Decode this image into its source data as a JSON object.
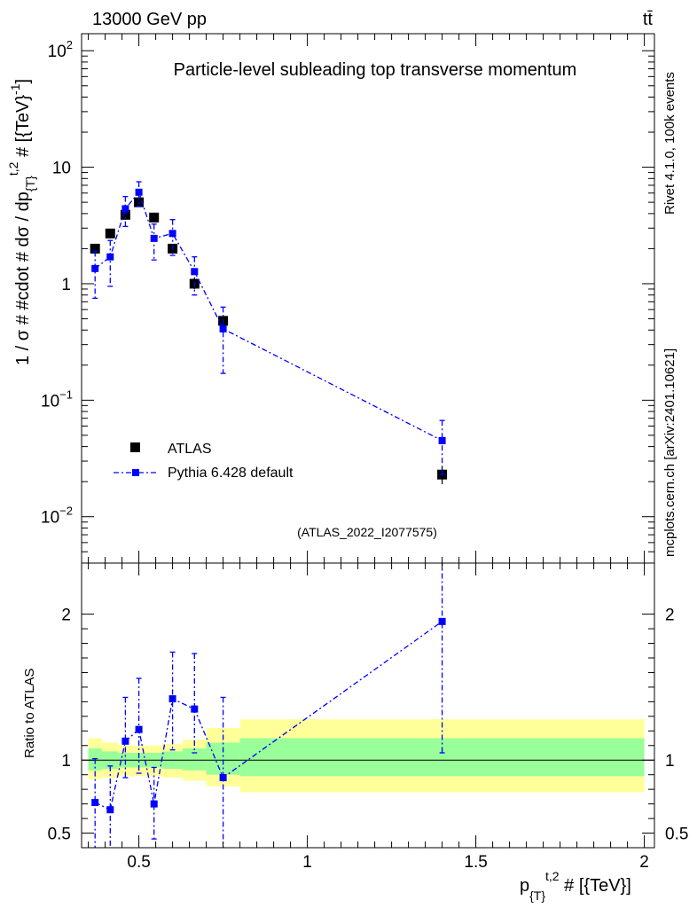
{
  "header": {
    "left_label": "13000 GeV pp",
    "right_label": "tt̄"
  },
  "side_labels": {
    "rivet": "Rivet 4.1.0,  100k events",
    "mcplots": "mcplots.cern.ch [arXiv:2401.10621]"
  },
  "colors": {
    "data": "#000000",
    "mc": "#0000ff",
    "band_outer": "#ffff99",
    "band_inner": "#99ff99",
    "watermark": "#999999"
  },
  "chart_data": [
    {
      "panel": "main",
      "type": "scatter",
      "title": "Particle-level subleading top transverse momentum",
      "xlabel": "p_{T}^{t,2} # [{TeV}]",
      "ylabel": "1 / σ # #cdot # dσ / dp_{T}^{t,2} # [{TeV}^{-1}]",
      "yscale": "log",
      "ylim": [
        0.004,
        140
      ],
      "xlim": [
        0.33,
        2.03
      ],
      "y_ticks": [
        {
          "value": 0.01,
          "label": "10",
          "exp": "−2"
        },
        {
          "value": 0.1,
          "label": "10",
          "exp": "−1"
        },
        {
          "value": 1,
          "label": "1",
          "exp": ""
        },
        {
          "value": 10,
          "label": "10",
          "exp": ""
        },
        {
          "value": 100,
          "label": "10",
          "exp": "2"
        }
      ],
      "watermark": "(ATLAS_2022_I2077575)",
      "legend": [
        {
          "label": "ATLAS",
          "marker": "square",
          "color": "#000000"
        },
        {
          "label": "Pythia 6.428 default",
          "marker": "square-line",
          "color": "#0000ff"
        }
      ],
      "series": [
        {
          "name": "ATLAS",
          "x": [
            0.37,
            0.415,
            0.46,
            0.5,
            0.545,
            0.6,
            0.665,
            0.75,
            1.4
          ],
          "y": [
            2.0,
            2.7,
            3.9,
            5.0,
            3.7,
            2.0,
            1.0,
            0.48,
            0.023
          ],
          "err": [
            0.2,
            0.25,
            0.35,
            0.4,
            0.3,
            0.18,
            0.1,
            0.06,
            0.004
          ]
        },
        {
          "name": "Pythia 6.428 default",
          "x": [
            0.37,
            0.415,
            0.46,
            0.5,
            0.545,
            0.6,
            0.665,
            0.75,
            1.4
          ],
          "y": [
            1.35,
            1.7,
            4.4,
            6.1,
            2.45,
            2.7,
            1.27,
            0.41,
            0.045
          ],
          "err_lo": [
            0.6,
            0.75,
            1.3,
            1.5,
            0.85,
            0.95,
            0.47,
            0.24,
            0.022
          ],
          "err_hi": [
            0.55,
            0.65,
            1.2,
            1.4,
            0.8,
            0.85,
            0.43,
            0.22,
            0.022
          ]
        }
      ]
    },
    {
      "panel": "ratio",
      "type": "line",
      "ylabel": "Ratio to ATLAS",
      "ylim": [
        0.4,
        2.35
      ],
      "y_ticks": [
        {
          "value": 0.5,
          "label": "0.5"
        },
        {
          "value": 1,
          "label": "1"
        },
        {
          "value": 2,
          "label": "2"
        }
      ],
      "xlim": [
        0.33,
        2.03
      ],
      "x_ticks": [
        {
          "value": 0.5,
          "label": "0.5"
        },
        {
          "value": 1,
          "label": "1"
        },
        {
          "value": 1.5,
          "label": "1.5"
        },
        {
          "value": 2,
          "label": "2"
        }
      ],
      "bands": [
        {
          "x0": 0.35,
          "x1": 0.39,
          "in_lo": 0.93,
          "in_hi": 1.08,
          "out_lo": 0.87,
          "out_hi": 1.15
        },
        {
          "x0": 0.39,
          "x1": 0.44,
          "in_lo": 0.94,
          "in_hi": 1.06,
          "out_lo": 0.88,
          "out_hi": 1.12
        },
        {
          "x0": 0.44,
          "x1": 0.48,
          "in_lo": 0.95,
          "in_hi": 1.05,
          "out_lo": 0.89,
          "out_hi": 1.1
        },
        {
          "x0": 0.48,
          "x1": 0.52,
          "in_lo": 0.95,
          "in_hi": 1.05,
          "out_lo": 0.89,
          "out_hi": 1.1
        },
        {
          "x0": 0.52,
          "x1": 0.57,
          "in_lo": 0.95,
          "in_hi": 1.05,
          "out_lo": 0.89,
          "out_hi": 1.1
        },
        {
          "x0": 0.57,
          "x1": 0.63,
          "in_lo": 0.94,
          "in_hi": 1.06,
          "out_lo": 0.88,
          "out_hi": 1.11
        },
        {
          "x0": 0.63,
          "x1": 0.7,
          "in_lo": 0.93,
          "in_hi": 1.08,
          "out_lo": 0.86,
          "out_hi": 1.14
        },
        {
          "x0": 0.7,
          "x1": 0.8,
          "in_lo": 0.9,
          "in_hi": 1.12,
          "out_lo": 0.82,
          "out_hi": 1.22
        },
        {
          "x0": 0.8,
          "x1": 2.0,
          "in_lo": 0.89,
          "in_hi": 1.15,
          "out_lo": 0.78,
          "out_hi": 1.28
        }
      ],
      "series": [
        {
          "name": "Pythia 6.428 default / ATLAS",
          "x": [
            0.37,
            0.415,
            0.46,
            0.5,
            0.545,
            0.6,
            0.665,
            0.75,
            1.4
          ],
          "y": [
            0.71,
            0.66,
            1.13,
            1.21,
            0.7,
            1.42,
            1.35,
            0.88,
            1.95
          ],
          "err_lo": [
            0.35,
            0.3,
            0.25,
            0.3,
            0.24,
            0.35,
            0.3,
            0.55,
            0.9
          ],
          "err_hi": [
            0.3,
            0.3,
            0.3,
            0.35,
            0.25,
            0.32,
            0.38,
            0.55,
            0.5
          ]
        }
      ]
    }
  ]
}
